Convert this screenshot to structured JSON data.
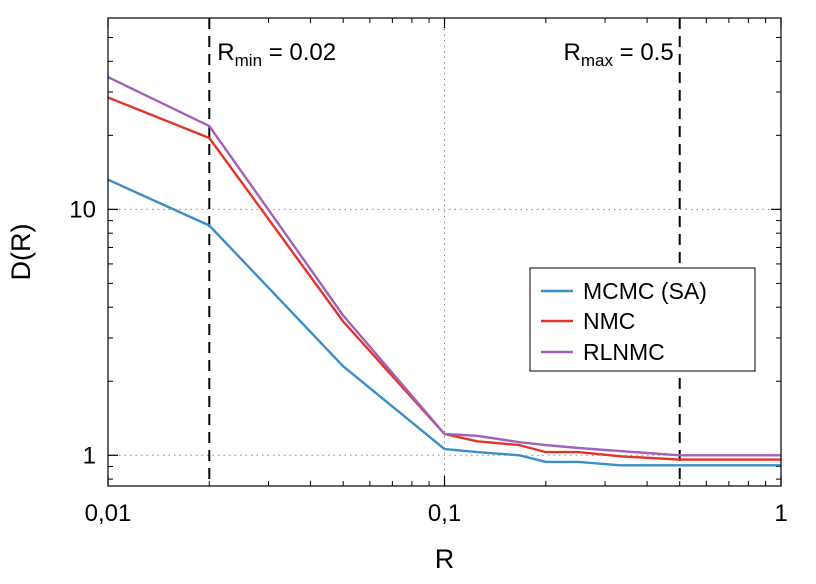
{
  "chart_data": {
    "type": "line",
    "xlabel": "R",
    "ylabel": "D(R)",
    "xscale": "log",
    "yscale": "log",
    "xlim": [
      0.01,
      1
    ],
    "ylim": [
      0.75,
      60
    ],
    "x_ticks": [
      {
        "value": 0.01,
        "label": "0,01"
      },
      {
        "value": 0.1,
        "label": "0,1"
      },
      {
        "value": 1,
        "label": "1"
      }
    ],
    "y_ticks": [
      {
        "value": 1,
        "label": "1"
      },
      {
        "value": 10,
        "label": "10"
      }
    ],
    "grid": "dotted at major ticks",
    "legend": "right",
    "series": [
      {
        "name": "MCMC (SA)",
        "color": "#3a8fc8",
        "points": [
          [
            0.01,
            13.2
          ],
          [
            0.02,
            8.6
          ],
          [
            0.05,
            2.3
          ],
          [
            0.1,
            1.06
          ],
          [
            0.125,
            1.03
          ],
          [
            0.167,
            1.0
          ],
          [
            0.2,
            0.94
          ],
          [
            0.25,
            0.94
          ],
          [
            0.333,
            0.91
          ],
          [
            0.5,
            0.91
          ],
          [
            1,
            0.91
          ]
        ]
      },
      {
        "name": "NMC",
        "color": "#e4342a",
        "points": [
          [
            0.01,
            28.5
          ],
          [
            0.02,
            19.5
          ],
          [
            0.05,
            3.5
          ],
          [
            0.1,
            1.22
          ],
          [
            0.125,
            1.14
          ],
          [
            0.167,
            1.1
          ],
          [
            0.2,
            1.03
          ],
          [
            0.25,
            1.03
          ],
          [
            0.333,
            0.99
          ],
          [
            0.5,
            0.96
          ],
          [
            1,
            0.96
          ]
        ]
      },
      {
        "name": "RLNMC",
        "color": "#a261b8",
        "points": [
          [
            0.01,
            34.5
          ],
          [
            0.02,
            21.8
          ],
          [
            0.05,
            3.7
          ],
          [
            0.1,
            1.22
          ],
          [
            0.125,
            1.2
          ],
          [
            0.167,
            1.13
          ],
          [
            0.2,
            1.1
          ],
          [
            0.25,
            1.07
          ],
          [
            0.333,
            1.04
          ],
          [
            0.5,
            1.0
          ],
          [
            1,
            1.0
          ]
        ]
      }
    ],
    "vlines": [
      {
        "x": 0.02,
        "label_main": "R",
        "label_sub": "min",
        "label_rest": " = 0.02",
        "style": "dashed"
      },
      {
        "x": 0.5,
        "label_main": "R",
        "label_sub": "max",
        "label_rest": " = 0.5",
        "style": "dashed"
      }
    ]
  }
}
